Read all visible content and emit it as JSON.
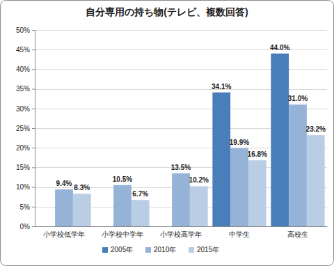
{
  "chart_data": {
    "type": "bar",
    "title": "自分専用の持ち物(テレビ、複数回答)",
    "categories": [
      "小学校低学年",
      "小学校中学年",
      "小学校高学年",
      "中学生",
      "高校生"
    ],
    "series": [
      {
        "name": "2005年",
        "color": "#4a7ebb",
        "values": [
          null,
          null,
          null,
          34.1,
          44.0
        ],
        "value_labels": [
          null,
          null,
          null,
          "34.1%",
          "44.0%"
        ]
      },
      {
        "name": "2010年",
        "color": "#95b3d7",
        "values": [
          9.4,
          10.5,
          13.5,
          19.9,
          31.0
        ],
        "value_labels": [
          "9.4%",
          "10.5%",
          "13.5%",
          "19.9%",
          "31.0%"
        ]
      },
      {
        "name": "2015年",
        "color": "#b9cde5",
        "values": [
          8.3,
          6.7,
          10.2,
          16.8,
          23.2
        ],
        "value_labels": [
          "8.3%",
          "6.7%",
          "10.2%",
          "16.8%",
          "23.2%"
        ]
      }
    ],
    "ylim": [
      0,
      50
    ],
    "yticks": [
      {
        "value": 0,
        "label": "0%"
      },
      {
        "value": 5,
        "label": "5%"
      },
      {
        "value": 10,
        "label": "10%"
      },
      {
        "value": 15,
        "label": "15%"
      },
      {
        "value": 20,
        "label": "20%"
      },
      {
        "value": 25,
        "label": "25%"
      },
      {
        "value": 30,
        "label": "30%"
      },
      {
        "value": 35,
        "label": "35%"
      },
      {
        "value": 40,
        "label": "40%"
      },
      {
        "value": 45,
        "label": "45%"
      },
      {
        "value": 50,
        "label": "50%"
      }
    ],
    "grid": true,
    "data_labels": true,
    "legend": "bottom"
  }
}
